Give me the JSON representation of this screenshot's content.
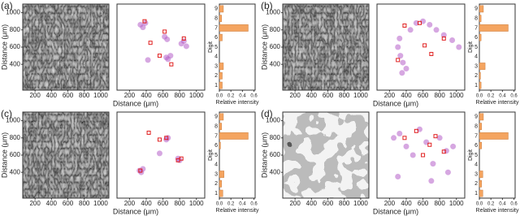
{
  "panels": [
    {
      "label": "(a)",
      "image": {
        "xlim": [
          50,
          1100
        ],
        "ylim": [
          100,
          1100
        ],
        "xticks": [
          200,
          400,
          600,
          800,
          1000
        ],
        "yticks": [
          400,
          600,
          800,
          1000
        ],
        "xlabel": "Distance (μm)",
        "ylabel": "Distance (μm)"
      },
      "scatter": {
        "xlim": [
          50,
          1100
        ],
        "ylim": [
          100,
          1100
        ],
        "xticks": [
          200,
          400,
          600,
          800,
          1000
        ],
        "series": [
          {
            "color": "#b45ec8",
            "x": [
              330,
              360,
              390,
              420,
              640,
              660,
              690,
              820,
              850,
              880,
              620,
              650
            ],
            "y": [
              860,
              830,
              880,
              450,
              480,
              460,
              500,
              640,
              670,
              610,
              720,
              690
            ]
          },
          {
            "color": "#e02020",
            "x": [
              380,
              560,
              620,
              700,
              850,
              450
            ],
            "y": [
              900,
              500,
              780,
              400,
              700,
              650
            ]
          }
        ]
      },
      "bars": {
        "type": "bar",
        "categories": [
          "1",
          "2",
          "3",
          "4",
          "5",
          "6",
          "7",
          "8",
          "9"
        ],
        "values": [
          0.05,
          0.05,
          0.07,
          0,
          0,
          0.05,
          0.5,
          0.04,
          0.07
        ],
        "color": "#f4a460",
        "xlim": [
          0,
          0.62
        ],
        "xticks": [
          {
            "value": 0,
            "label": "0.0"
          },
          0.2,
          0.4,
          0.6
        ],
        "xlabel": "Relative intensity",
        "ylabel": "Digit"
      }
    },
    {
      "label": "(b)",
      "image": {
        "xlim": [
          50,
          1100
        ],
        "ylim": [
          100,
          1100
        ],
        "xticks": [
          200,
          400,
          600,
          800,
          1000
        ],
        "yticks": [
          400,
          600,
          800,
          1000
        ],
        "xlabel": "Distance (μm)",
        "ylabel": "Distance (μm)"
      },
      "scatter": {
        "xlim": [
          50,
          1100
        ],
        "ylim": [
          100,
          1100
        ],
        "xticks": [
          200,
          400,
          600,
          800,
          1000
        ],
        "series": [
          {
            "color": "#b45ec8",
            "x": [
              300,
              330,
              360,
              400,
              450,
              520,
              600,
              680,
              760,
              850,
              950,
              1030,
              320,
              350
            ],
            "y": [
              600,
              500,
              420,
              350,
              800,
              880,
              900,
              860,
              800,
              740,
              680,
              600,
              700,
              300
            ]
          },
          {
            "color": "#e02020",
            "x": [
              380,
              560,
              620,
              700,
              850,
              300
            ],
            "y": [
              850,
              880,
              620,
              520,
              700,
              450
            ]
          }
        ]
      },
      "bars": {
        "type": "bar",
        "categories": [
          "1",
          "2",
          "3",
          "4",
          "5",
          "6",
          "7",
          "8",
          "9"
        ],
        "values": [
          0.03,
          0.02,
          0.1,
          0,
          0,
          0.03,
          0.5,
          0.03,
          0.07
        ],
        "color": "#f4a460",
        "xlim": [
          0,
          0.62
        ],
        "xticks": [
          {
            "value": 0,
            "label": "0.0"
          },
          0.2,
          0.4,
          0.6
        ],
        "xlabel": "Relative intensity",
        "ylabel": "Digit"
      }
    },
    {
      "label": "(c)",
      "image": {
        "xlim": [
          50,
          1100
        ],
        "ylim": [
          100,
          1100
        ],
        "xticks": [
          200,
          400,
          600,
          800,
          1000
        ],
        "yticks": [
          400,
          600,
          800,
          1000
        ],
        "xlabel": "Distance (μm)",
        "ylabel": "Distance (μm)"
      },
      "scatter": {
        "xlim": [
          50,
          1100
        ],
        "ylim": [
          100,
          1100
        ],
        "xticks": [
          200,
          400,
          600,
          800,
          1000
        ],
        "series": [
          {
            "color": "#b45ec8",
            "x": [
              320,
              340,
              360,
              640,
              660,
              780,
              800,
              560
            ],
            "y": [
              420,
              400,
              440,
              780,
              800,
              560,
              540,
              620
            ]
          },
          {
            "color": "#e02020",
            "x": [
              430,
              560,
              640,
              780,
              820,
              330
            ],
            "y": [
              860,
              780,
              800,
              540,
              560,
              420
            ]
          }
        ]
      },
      "bars": {
        "type": "bar",
        "categories": [
          "1",
          "2",
          "3",
          "4",
          "5",
          "6",
          "7",
          "8",
          "9"
        ],
        "values": [
          0.06,
          0.04,
          0.08,
          0,
          0,
          0.02,
          0.5,
          0.04,
          0.07
        ],
        "color": "#f4a460",
        "xlim": [
          0,
          0.62
        ],
        "xticks": [
          {
            "value": 0,
            "label": "0.0"
          },
          0.2,
          0.4,
          0.6
        ],
        "xlabel": "Relative intensity",
        "ylabel": "Digit"
      }
    },
    {
      "label": "(d)",
      "image": {
        "xlim": [
          50,
          1100
        ],
        "ylim": [
          100,
          1100
        ],
        "xticks": [
          200,
          400,
          600,
          800,
          1000
        ],
        "yticks": [
          400,
          600,
          800,
          1000
        ],
        "xlabel": "Distance (μm)",
        "ylabel": "Distance (μm)"
      },
      "scatter": {
        "xlim": [
          50,
          1100
        ],
        "ylim": [
          100,
          1100
        ],
        "xticks": [
          200,
          400,
          600,
          800,
          1000
        ],
        "series": [
          {
            "color": "#b45ec8",
            "x": [
              250,
              320,
              400,
              480,
              560,
              640,
              720,
              800,
              880,
              960,
              300,
              700,
              900
            ],
            "y": [
              800,
              850,
              700,
              600,
              900,
              750,
              500,
              800,
              650,
              700,
              350,
              300,
              400
            ]
          },
          {
            "color": "#e02020",
            "x": [
              380,
              520,
              600,
              680,
              750,
              850
            ],
            "y": [
              800,
              880,
              600,
              720,
              820,
              640
            ]
          }
        ]
      },
      "bars": {
        "type": "bar",
        "categories": [
          "1",
          "2",
          "3",
          "4",
          "5",
          "6",
          "7",
          "8",
          "9"
        ],
        "values": [
          0.06,
          0.04,
          0.06,
          0,
          0,
          0.04,
          0.5,
          0.04,
          0.07
        ],
        "color": "#f4a460",
        "xlim": [
          0,
          0.62
        ],
        "xticks": [
          {
            "value": 0,
            "label": "0.0"
          },
          0.2,
          0.4,
          0.6
        ],
        "xlabel": "Relative intensity",
        "ylabel": "Digit"
      }
    }
  ]
}
